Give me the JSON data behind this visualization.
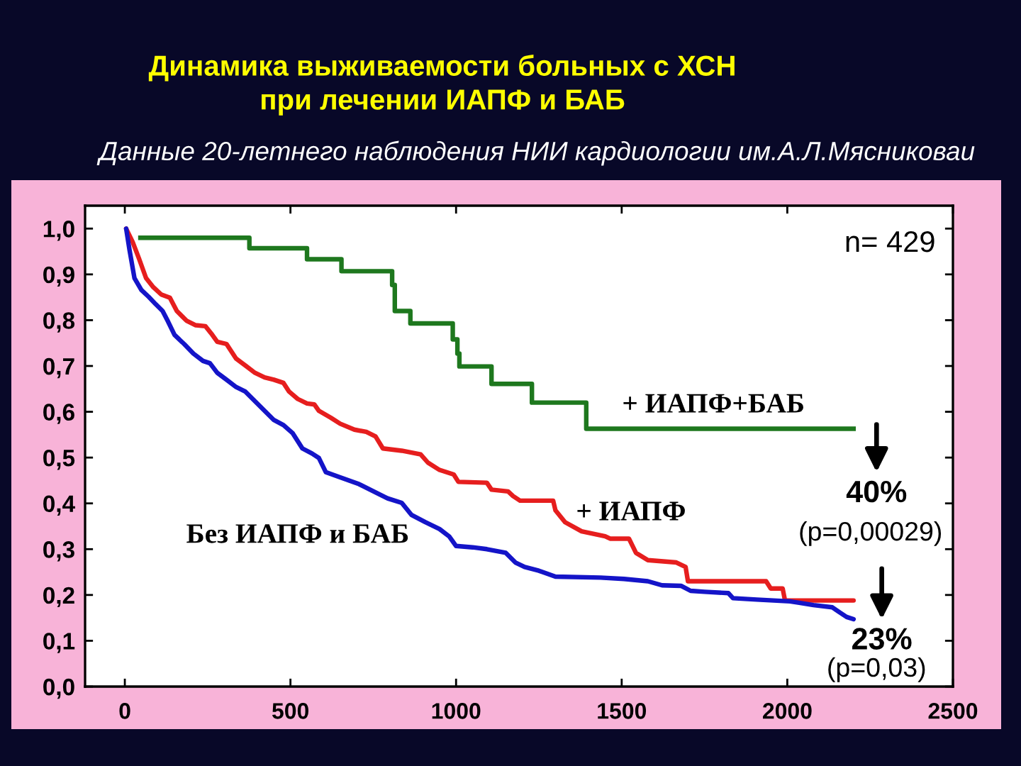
{
  "chart_data": {
    "type": "line",
    "title": "Динамика выживаемости больных с ХСН\nпри лечении ИАПФ и БАБ",
    "subtitle": "Данные 20-летнего наблюдения НИИ кардиологии им.А.Л.Мясниковаи",
    "xlim": [
      -120,
      2500
    ],
    "ylim": [
      0,
      1.05
    ],
    "xticks": [
      0,
      500,
      1000,
      1500,
      2000,
      2500
    ],
    "yticks": [
      {
        "value": 0,
        "label": "0,0"
      },
      {
        "value": 0.1,
        "label": "0,1"
      },
      {
        "value": 0.2,
        "label": "0,2"
      },
      {
        "value": 0.3,
        "label": "0,3"
      },
      {
        "value": 0.4,
        "label": "0,4"
      },
      {
        "value": 0.5,
        "label": "0,5"
      },
      {
        "value": 0.6,
        "label": "0,6"
      },
      {
        "value": 0.7,
        "label": "0,7"
      },
      {
        "value": 0.8,
        "label": "0,8"
      },
      {
        "value": 0.9,
        "label": "0,9"
      },
      {
        "value": 1.0,
        "label": "1,0"
      }
    ],
    "series": [
      {
        "name": "+ ИАПФ+БАБ",
        "type": "step",
        "color": "#1e781e",
        "x": [
          47,
          376,
          550,
          654,
          807,
          815,
          862,
          990,
          1004,
          1010,
          1107,
          1229,
          1393,
          2200
        ],
        "values": [
          0.98,
          0.957,
          0.933,
          0.907,
          0.877,
          0.82,
          0.793,
          0.758,
          0.727,
          0.699,
          0.661,
          0.62,
          0.563,
          0.563
        ]
      },
      {
        "name": "+ ИАПФ",
        "color": "#e61e1e",
        "x": [
          4,
          24,
          43,
          64,
          86,
          110,
          136,
          157,
          186,
          214,
          243,
          264,
          279,
          307,
          336,
          364,
          393,
          422,
          450,
          479,
          496,
          522,
          550,
          572,
          586,
          622,
          650,
          693,
          729,
          757,
          779,
          836,
          893,
          915,
          950,
          993,
          1007,
          1093,
          1107,
          1157,
          1172,
          1193,
          1293,
          1300,
          1329,
          1379,
          1450,
          1465,
          1522,
          1543,
          1579,
          1665,
          1693,
          1700,
          1936,
          1950,
          1986,
          1993,
          2200
        ],
        "values": [
          1.0,
          0.97,
          0.934,
          0.892,
          0.872,
          0.856,
          0.849,
          0.82,
          0.799,
          0.789,
          0.787,
          0.768,
          0.753,
          0.748,
          0.716,
          0.701,
          0.685,
          0.675,
          0.67,
          0.663,
          0.644,
          0.628,
          0.618,
          0.616,
          0.602,
          0.587,
          0.574,
          0.561,
          0.556,
          0.546,
          0.52,
          0.515,
          0.507,
          0.489,
          0.473,
          0.463,
          0.447,
          0.445,
          0.43,
          0.426,
          0.416,
          0.406,
          0.406,
          0.385,
          0.359,
          0.339,
          0.328,
          0.323,
          0.323,
          0.292,
          0.276,
          0.271,
          0.261,
          0.23,
          0.23,
          0.214,
          0.214,
          0.188,
          0.188
        ]
      },
      {
        "name": "Без ИАПФ и БАБ",
        "color": "#1414c8",
        "x": [
          4,
          14,
          29,
          50,
          72,
          93,
          114,
          129,
          150,
          179,
          207,
          236,
          257,
          279,
          307,
          336,
          364,
          393,
          422,
          450,
          479,
          507,
          536,
          565,
          586,
          607,
          650,
          707,
          765,
          793,
          836,
          865,
          907,
          950,
          979,
          1000,
          1050,
          1093,
          1150,
          1179,
          1207,
          1250,
          1300,
          1436,
          1507,
          1579,
          1622,
          1679,
          1708,
          1750,
          1822,
          1836,
          1908,
          2008,
          2036,
          2079,
          2136,
          2158,
          2179,
          2200
        ],
        "values": [
          1.0,
          0.954,
          0.892,
          0.866,
          0.851,
          0.835,
          0.82,
          0.799,
          0.768,
          0.748,
          0.727,
          0.711,
          0.706,
          0.685,
          0.67,
          0.654,
          0.644,
          0.623,
          0.602,
          0.582,
          0.571,
          0.553,
          0.52,
          0.509,
          0.499,
          0.468,
          0.457,
          0.442,
          0.421,
          0.411,
          0.401,
          0.375,
          0.359,
          0.344,
          0.328,
          0.307,
          0.304,
          0.3,
          0.292,
          0.271,
          0.261,
          0.253,
          0.24,
          0.238,
          0.235,
          0.23,
          0.221,
          0.22,
          0.209,
          0.207,
          0.204,
          0.193,
          0.19,
          0.186,
          0.183,
          0.178,
          0.173,
          0.162,
          0.152,
          0.147
        ]
      }
    ],
    "annotations": [
      "n= 429",
      "40%",
      "(p=0,00029)",
      "23%",
      "(p=0,03)"
    ]
  }
}
